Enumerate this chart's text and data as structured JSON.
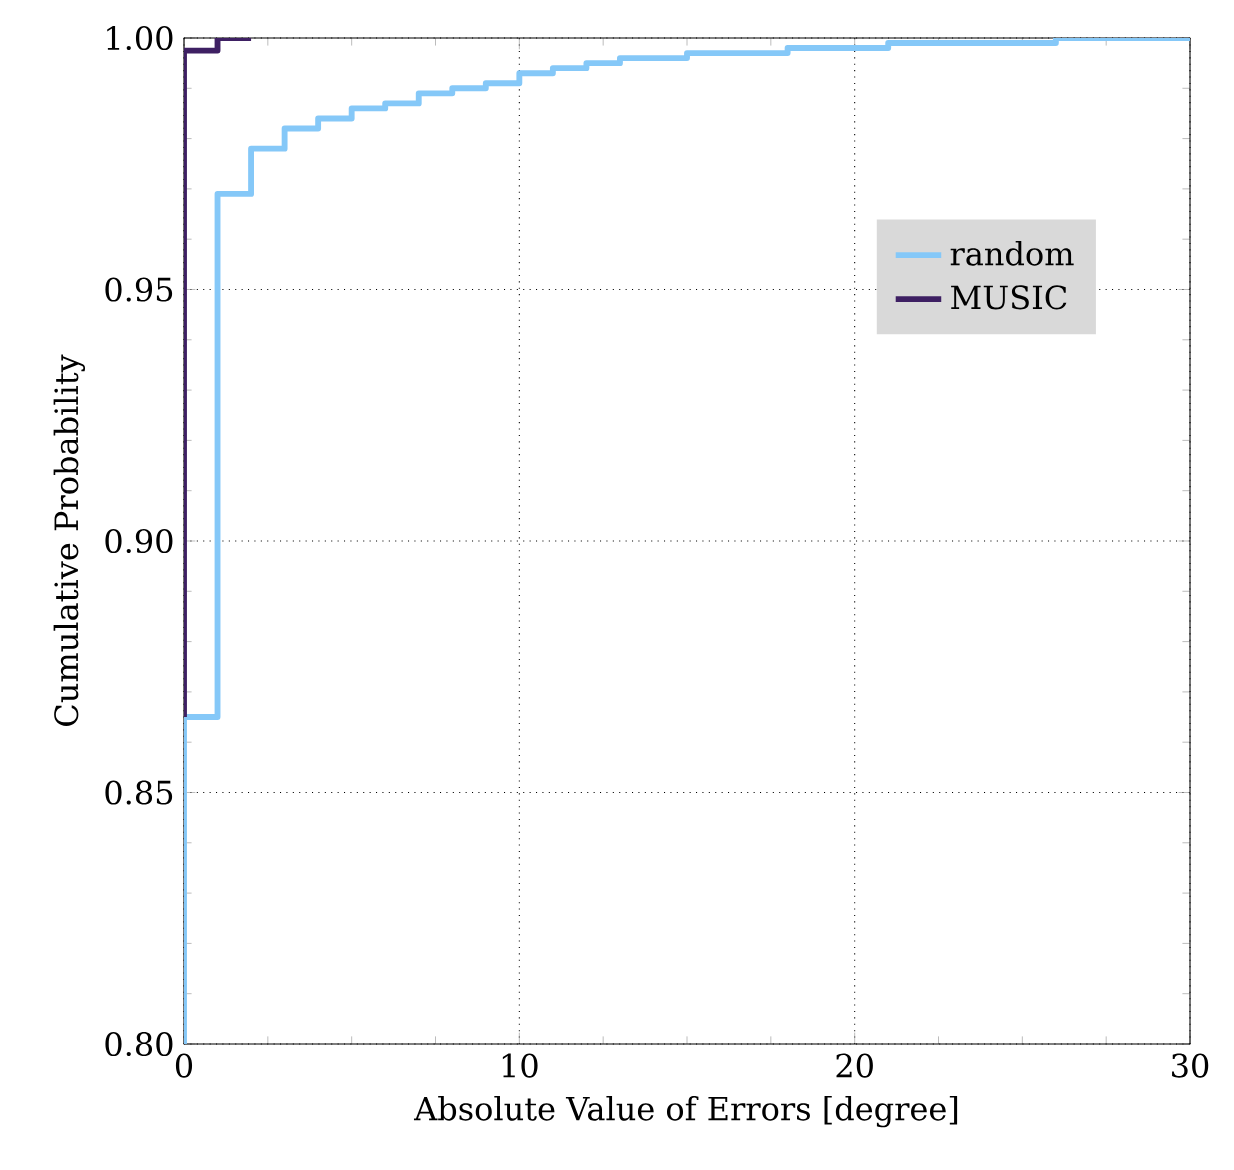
{
  "chart_data": {
    "type": "step",
    "xlabel": "Absolute Value of Errors [degree]",
    "ylabel": "Cumulative Probability",
    "xlim": [
      0,
      30
    ],
    "ylim": [
      0.8,
      1.0
    ],
    "xticks": [
      0,
      10,
      20,
      30
    ],
    "yticks": [
      {
        "value": 0.8,
        "label": "0.80"
      },
      {
        "value": 0.85,
        "label": "0.85"
      },
      {
        "value": 0.9,
        "label": "0.90"
      },
      {
        "value": 0.95,
        "label": "0.95"
      },
      {
        "value": 1.0,
        "label": "1.00"
      }
    ],
    "grid": true,
    "legend": "top right",
    "line_style": "solid",
    "marker": "none",
    "series": [
      {
        "name": "random",
        "color": "#85c8f8",
        "x": [
          0,
          0,
          1,
          2,
          3,
          4,
          5,
          6,
          7,
          8,
          9,
          10,
          11,
          12,
          13,
          14,
          15,
          16,
          17,
          18,
          19,
          20,
          21,
          22,
          23,
          24,
          25,
          26,
          27,
          28,
          29,
          30
        ],
        "values": [
          0.8,
          0.865,
          0.969,
          0.978,
          0.982,
          0.984,
          0.986,
          0.987,
          0.989,
          0.99,
          0.991,
          0.993,
          0.994,
          0.995,
          0.996,
          0.996,
          0.997,
          0.997,
          0.997,
          0.998,
          0.998,
          0.998,
          0.999,
          0.999,
          0.999,
          0.999,
          0.999,
          1.0,
          1.0,
          1.0,
          1.0,
          1.0
        ]
      },
      {
        "name": "MUSIC",
        "color": "#3e2063",
        "x": [
          0,
          0,
          1,
          2
        ],
        "values": [
          0.865,
          0.9975,
          1.0,
          1.0
        ]
      }
    ]
  }
}
